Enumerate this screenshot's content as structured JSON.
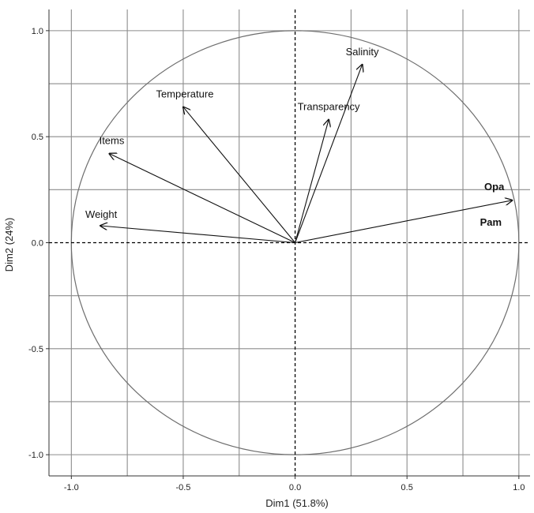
{
  "chart_data": {
    "type": "scatter",
    "subtype": "pca-correlation-circle",
    "title": "",
    "xlabel": "Dim1 (51.8%)",
    "ylabel": "Dim2 (24%)",
    "xlim": [
      -1.1,
      1.05
    ],
    "ylim": [
      -1.1,
      1.1
    ],
    "xticks": [
      -1.0,
      -0.5,
      0.0,
      0.5,
      1.0
    ],
    "xtick_labels": [
      "-1.0",
      "-0.5",
      "0.0",
      "0.5",
      "1.0"
    ],
    "yticks": [
      -1.0,
      -0.5,
      0.0,
      0.5,
      1.0
    ],
    "ytick_labels": [
      "-1.0",
      "-0.5",
      "0.0",
      "0.5",
      "1.0"
    ],
    "grid": true,
    "unit_circle": true,
    "variables": [
      {
        "name": "Salinity",
        "x": 0.3,
        "y": 0.84,
        "bold": false
      },
      {
        "name": "Transparency",
        "x": 0.15,
        "y": 0.58,
        "bold": false
      },
      {
        "name": "Temperature",
        "x": -0.5,
        "y": 0.64,
        "bold": false
      },
      {
        "name": "Items",
        "x": -0.83,
        "y": 0.42,
        "bold": false
      },
      {
        "name": "Weight",
        "x": -0.87,
        "y": 0.08,
        "bold": false
      },
      {
        "name": "Opa",
        "x": 0.97,
        "y": 0.2,
        "bold": true
      },
      {
        "name": "Pam",
        "x": 0.97,
        "y": 0.2,
        "bold": true
      }
    ]
  }
}
